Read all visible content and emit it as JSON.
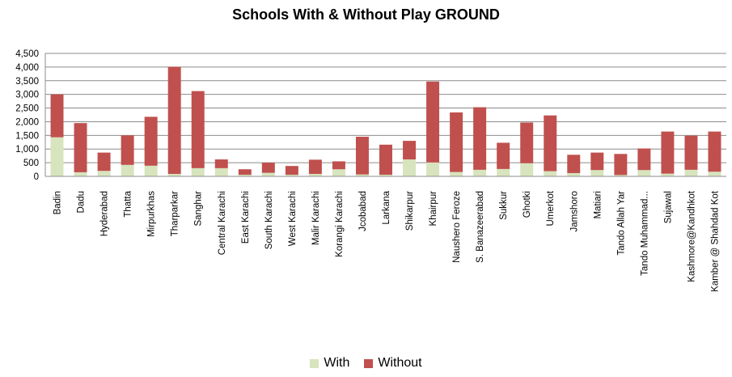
{
  "chart_data": {
    "type": "bar",
    "stacked": true,
    "title": "Schools With & Without Play GROUND",
    "xlabel": "",
    "ylabel": "",
    "ylim": [
      0,
      4500
    ],
    "yticks": [
      0,
      500,
      1000,
      1500,
      2000,
      2500,
      3000,
      3500,
      4000,
      4500
    ],
    "ytick_labels": [
      "0",
      "500",
      "1,000",
      "1,500",
      "2,000",
      "2,500",
      "3,000",
      "3,500",
      "4,000",
      "4,500"
    ],
    "grid": true,
    "legend_position": "bottom",
    "categories": [
      "Badin",
      "Dadu",
      "Hyderabad",
      "Thatta",
      "Mirpurkhas",
      "Tharparkar",
      "Sanghar",
      "Central Karachi",
      "East Karachi",
      "South  Karachi",
      "West Karachi",
      "Malir Karachi",
      "Korangi Karachi",
      "Jcobabad",
      "Larkana",
      "Shikarpur",
      "Khairpur",
      "Naushero Feroze",
      "S. Banazeerabad",
      "Sukkur",
      "Ghotki",
      "Umerkot",
      "Jamshoro",
      "Matiari",
      "Tando Allah Yar",
      "Tando Muhammad...",
      "Sujawal",
      "Kashmore@Kandhkot",
      "Kamber @ Shahdad Kot"
    ],
    "series": [
      {
        "name": "With",
        "color": "#d7e4bd",
        "values": [
          1430,
          150,
          200,
          420,
          390,
          90,
          300,
          300,
          60,
          130,
          60,
          90,
          260,
          70,
          60,
          620,
          510,
          160,
          240,
          270,
          480,
          190,
          120,
          230,
          50,
          230,
          100,
          240,
          170
        ]
      },
      {
        "name": "Without",
        "color": "#c0504d",
        "values": [
          1570,
          1800,
          670,
          1080,
          1790,
          3920,
          2820,
          320,
          200,
          370,
          320,
          520,
          290,
          1380,
          1100,
          680,
          2960,
          2180,
          2290,
          960,
          1490,
          2040,
          670,
          640,
          770,
          790,
          1540,
          1250,
          1470
        ]
      }
    ]
  }
}
